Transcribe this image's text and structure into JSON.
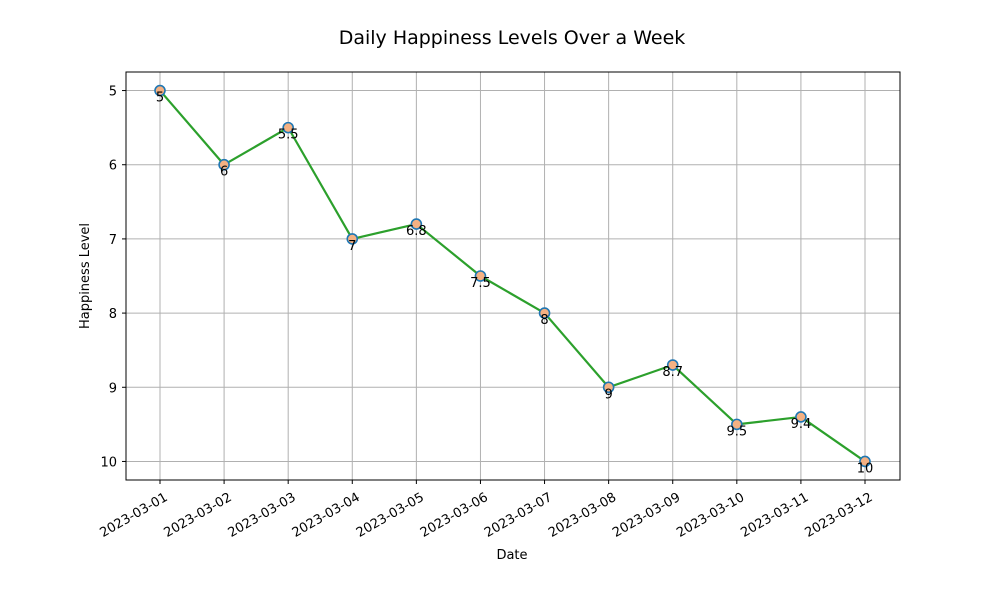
{
  "chart_data": {
    "type": "line",
    "title": "Daily Happiness Levels Over a Week",
    "xlabel": "Date",
    "ylabel": "Happiness Level",
    "x": [
      "2023-03-01",
      "2023-03-02",
      "2023-03-03",
      "2023-03-04",
      "2023-03-05",
      "2023-03-06",
      "2023-03-07",
      "2023-03-08",
      "2023-03-09",
      "2023-03-10",
      "2023-03-11",
      "2023-03-12"
    ],
    "series": [
      {
        "values": [
          5,
          6,
          5.5,
          7,
          6.8,
          7.5,
          8,
          9,
          8.7,
          9.5,
          9.4,
          10
        ]
      }
    ],
    "data_labels": [
      "5",
      "6",
      "5.5",
      "7",
      "6.8",
      "7.5",
      "8",
      "9",
      "8.7",
      "9.5",
      "9.4",
      "10"
    ],
    "y_ticks": [
      5,
      6,
      7,
      8,
      9,
      10
    ],
    "y_inverted": true,
    "ylim": [
      4.75,
      10.25
    ],
    "grid": true,
    "colors": {
      "line": "#2ca02c",
      "marker_fill": "#f4b183",
      "marker_edge": "#1f77b4",
      "grid": "#b0b0b0"
    }
  }
}
